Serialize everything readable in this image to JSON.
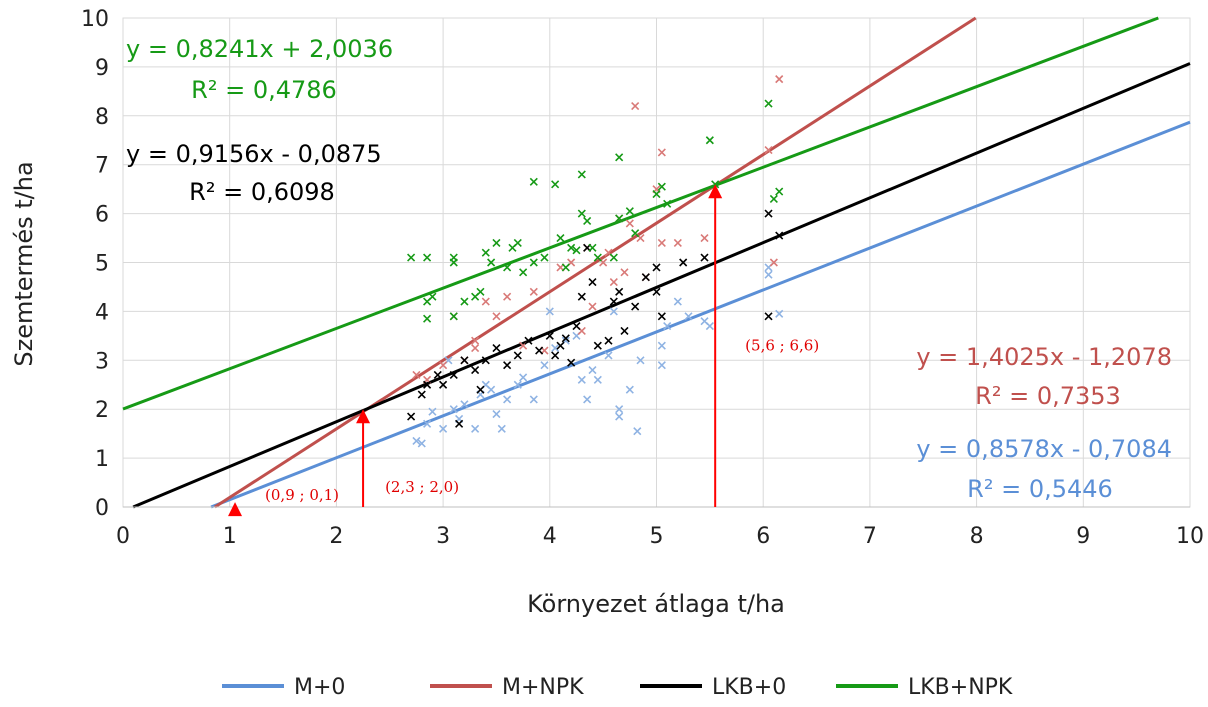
{
  "chart_data": {
    "type": "scatter",
    "xlabel": "Környezet átlaga t/ha",
    "ylabel": "Szemtermés t/ha",
    "xlim": [
      0,
      10
    ],
    "ylim": [
      0,
      10
    ],
    "x_ticks": [
      "0",
      "1",
      "2",
      "3",
      "4",
      "5",
      "6",
      "7",
      "8",
      "9",
      "10"
    ],
    "y_ticks": [
      "0",
      "1",
      "2",
      "3",
      "4",
      "5",
      "6",
      "7",
      "8",
      "9",
      "10"
    ],
    "grid": true,
    "legend_position": "bottom",
    "series": [
      {
        "name": "M+0",
        "color": "#5b8fd6",
        "marker_color": "#8fb3e3",
        "slope": 0.8578,
        "intercept": -0.7084,
        "equation": "y = 0,8578x - 0,7084",
        "r2": "R² = 0,5446",
        "points": [
          [
            2.75,
            1.35
          ],
          [
            2.8,
            1.3
          ],
          [
            2.85,
            1.7
          ],
          [
            2.9,
            1.95
          ],
          [
            3.0,
            1.6
          ],
          [
            3.1,
            2.0
          ],
          [
            3.15,
            1.8
          ],
          [
            3.2,
            2.1
          ],
          [
            3.3,
            1.6
          ],
          [
            3.35,
            2.3
          ],
          [
            3.45,
            2.4
          ],
          [
            3.5,
            1.9
          ],
          [
            3.55,
            1.6
          ],
          [
            3.6,
            2.2
          ],
          [
            3.7,
            2.5
          ],
          [
            3.75,
            2.65
          ],
          [
            3.85,
            2.2
          ],
          [
            3.95,
            2.9
          ],
          [
            4.05,
            3.25
          ],
          [
            4.15,
            3.4
          ],
          [
            4.25,
            3.5
          ],
          [
            4.3,
            2.6
          ],
          [
            4.35,
            2.2
          ],
          [
            4.4,
            2.8
          ],
          [
            4.45,
            2.6
          ],
          [
            4.55,
            3.1
          ],
          [
            4.65,
            2.0
          ],
          [
            4.65,
            1.85
          ],
          [
            4.75,
            2.4
          ],
          [
            4.82,
            1.55
          ],
          [
            4.85,
            3.0
          ],
          [
            5.05,
            3.3
          ],
          [
            5.05,
            2.9
          ],
          [
            5.1,
            3.7
          ],
          [
            5.3,
            3.9
          ],
          [
            5.45,
            3.8
          ],
          [
            5.5,
            3.7
          ],
          [
            6.05,
            4.9
          ],
          [
            6.05,
            4.75
          ],
          [
            6.15,
            3.95
          ],
          [
            3.05,
            3.0
          ],
          [
            3.4,
            2.5
          ],
          [
            4.6,
            4.0
          ],
          [
            4.0,
            4.0
          ],
          [
            5.2,
            4.2
          ]
        ]
      },
      {
        "name": "M+NPK",
        "color": "#c0504d",
        "marker_color": "#d97a78",
        "slope": 1.4025,
        "intercept": -1.2078,
        "equation": "y = 1,4025x - 1,2078",
        "r2": "R² = 0,7353",
        "points": [
          [
            2.85,
            2.6
          ],
          [
            3.0,
            2.9
          ],
          [
            3.1,
            3.9
          ],
          [
            3.2,
            3.0
          ],
          [
            3.3,
            3.25
          ],
          [
            3.4,
            4.2
          ],
          [
            3.5,
            3.9
          ],
          [
            3.6,
            4.3
          ],
          [
            3.75,
            3.3
          ],
          [
            3.85,
            4.4
          ],
          [
            3.95,
            3.2
          ],
          [
            4.1,
            4.9
          ],
          [
            4.2,
            5.0
          ],
          [
            4.3,
            3.6
          ],
          [
            4.35,
            5.3
          ],
          [
            4.4,
            4.1
          ],
          [
            4.5,
            5.0
          ],
          [
            4.55,
            5.2
          ],
          [
            4.6,
            4.6
          ],
          [
            4.65,
            5.9
          ],
          [
            4.7,
            4.8
          ],
          [
            4.75,
            5.8
          ],
          [
            4.8,
            8.2
          ],
          [
            4.85,
            5.5
          ],
          [
            4.9,
            4.7
          ],
          [
            5.0,
            6.5
          ],
          [
            5.05,
            7.25
          ],
          [
            5.05,
            5.4
          ],
          [
            5.2,
            5.4
          ],
          [
            5.45,
            5.5
          ],
          [
            6.05,
            7.3
          ],
          [
            6.15,
            8.75
          ],
          [
            6.1,
            5.0
          ],
          [
            2.75,
            2.7
          ],
          [
            3.3,
            3.4
          ]
        ]
      },
      {
        "name": "LKB+0",
        "color": "#000000",
        "marker_color": "#000000",
        "slope": 0.9156,
        "intercept": -0.0875,
        "equation": "y = 0,9156x - 0,0875",
        "r2": "R² = 0,6098",
        "points": [
          [
            2.7,
            1.85
          ],
          [
            2.8,
            2.3
          ],
          [
            2.85,
            2.5
          ],
          [
            2.95,
            2.7
          ],
          [
            3.1,
            2.7
          ],
          [
            3.15,
            1.7
          ],
          [
            3.2,
            3.0
          ],
          [
            3.3,
            2.8
          ],
          [
            3.35,
            2.4
          ],
          [
            3.4,
            3.0
          ],
          [
            3.5,
            3.25
          ],
          [
            3.6,
            2.9
          ],
          [
            3.7,
            3.1
          ],
          [
            3.8,
            3.4
          ],
          [
            3.9,
            3.2
          ],
          [
            4.0,
            3.5
          ],
          [
            4.05,
            3.1
          ],
          [
            4.1,
            3.3
          ],
          [
            4.15,
            3.45
          ],
          [
            4.2,
            2.95
          ],
          [
            4.25,
            3.7
          ],
          [
            4.3,
            4.3
          ],
          [
            4.35,
            5.3
          ],
          [
            4.4,
            4.6
          ],
          [
            4.45,
            3.3
          ],
          [
            4.55,
            3.4
          ],
          [
            4.6,
            4.2
          ],
          [
            4.65,
            4.4
          ],
          [
            4.7,
            3.6
          ],
          [
            4.8,
            4.1
          ],
          [
            5.0,
            4.9
          ],
          [
            5.0,
            4.4
          ],
          [
            5.05,
            3.9
          ],
          [
            5.25,
            5.0
          ],
          [
            5.45,
            5.1
          ],
          [
            6.05,
            6.0
          ],
          [
            6.05,
            3.9
          ],
          [
            6.15,
            5.55
          ],
          [
            3.0,
            2.5
          ],
          [
            4.9,
            4.7
          ]
        ]
      },
      {
        "name": "LKB+NPK",
        "color": "#169a16",
        "marker_color": "#169a16",
        "slope": 0.8241,
        "intercept": 2.0036,
        "equation": "y = 0,8241x + 2,0036",
        "r2": "R² = 0,4786",
        "points": [
          [
            2.7,
            5.1
          ],
          [
            2.85,
            5.1
          ],
          [
            2.85,
            4.2
          ],
          [
            2.9,
            4.3
          ],
          [
            2.85,
            3.85
          ],
          [
            3.1,
            5.1
          ],
          [
            3.1,
            5.0
          ],
          [
            3.1,
            3.9
          ],
          [
            3.2,
            4.2
          ],
          [
            3.3,
            4.3
          ],
          [
            3.35,
            4.4
          ],
          [
            3.4,
            5.2
          ],
          [
            3.45,
            5.0
          ],
          [
            3.5,
            5.4
          ],
          [
            3.6,
            4.9
          ],
          [
            3.65,
            5.3
          ],
          [
            3.7,
            5.4
          ],
          [
            3.75,
            4.8
          ],
          [
            3.85,
            5.0
          ],
          [
            3.85,
            6.65
          ],
          [
            3.95,
            5.1
          ],
          [
            4.05,
            6.6
          ],
          [
            4.1,
            5.5
          ],
          [
            4.15,
            4.9
          ],
          [
            4.2,
            5.3
          ],
          [
            4.25,
            5.25
          ],
          [
            4.3,
            6.0
          ],
          [
            4.3,
            6.8
          ],
          [
            4.35,
            5.85
          ],
          [
            4.4,
            5.3
          ],
          [
            4.45,
            5.1
          ],
          [
            4.6,
            5.1
          ],
          [
            4.65,
            7.15
          ],
          [
            4.65,
            5.9
          ],
          [
            4.75,
            6.05
          ],
          [
            4.8,
            5.6
          ],
          [
            5.0,
            6.4
          ],
          [
            5.05,
            6.55
          ],
          [
            5.1,
            6.2
          ],
          [
            5.5,
            7.5
          ],
          [
            5.55,
            6.6
          ],
          [
            6.05,
            8.25
          ],
          [
            6.1,
            6.3
          ],
          [
            6.15,
            6.45
          ]
        ]
      }
    ],
    "annotations": [
      {
        "label": "(0,9 ; 0,1)",
        "x": 0.9,
        "y": 0.1
      },
      {
        "label": "(2,3 ; 2,0)",
        "x": 2.3,
        "y": 2.0
      },
      {
        "label": "(5,6 ; 6,6)",
        "x": 5.6,
        "y": 6.6
      }
    ]
  }
}
